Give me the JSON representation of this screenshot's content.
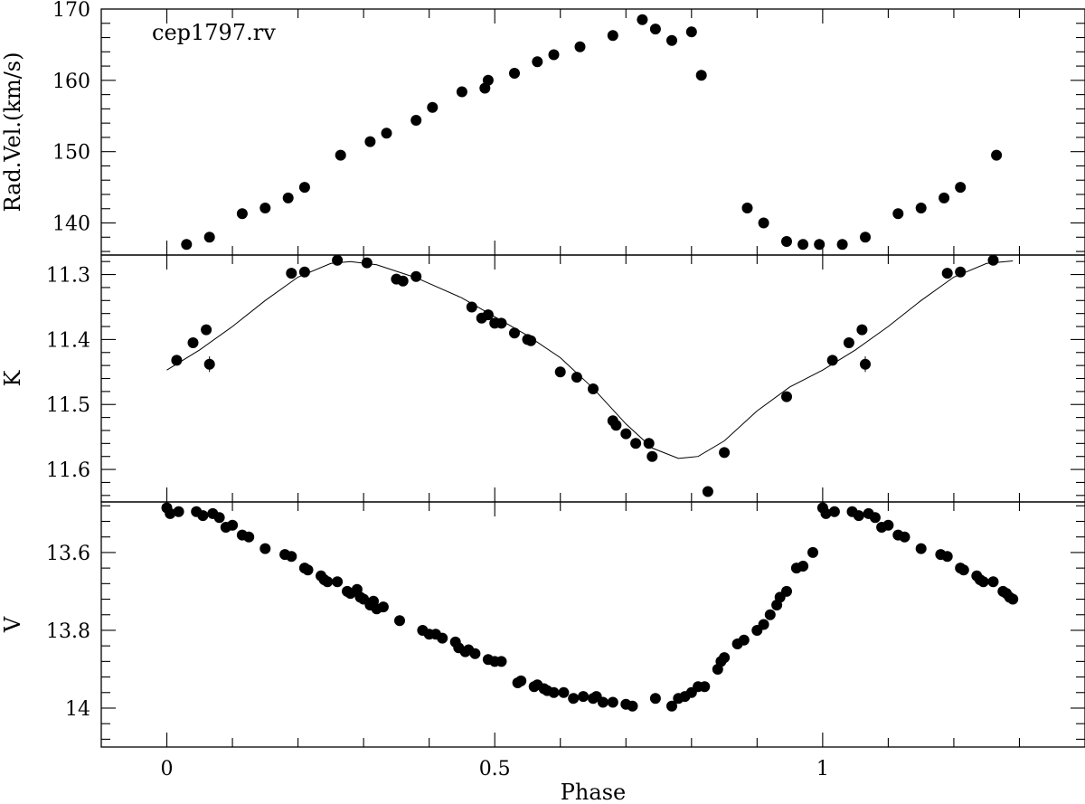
{
  "chart_data": {
    "type": "scatter",
    "xlabel": "Phase",
    "xlim": [
      -0.1,
      1.4
    ],
    "xticks": [
      0,
      0.5,
      1
    ],
    "xtick_labels": [
      "0",
      "0.5",
      "1"
    ],
    "grid": false,
    "panels": [
      {
        "id": "rv",
        "annotation": "cep1797.rv",
        "ylabel": "Rad.Vel.(km/s)",
        "ylim": [
          135.5,
          170
        ],
        "yticks": [
          140,
          150,
          160,
          170
        ],
        "ytick_labels": [
          "140",
          "150",
          "160",
          "170"
        ],
        "inverted": false,
        "points": [
          [
            0.03,
            137.0
          ],
          [
            0.065,
            138.0
          ],
          [
            0.115,
            141.3
          ],
          [
            0.15,
            142.1
          ],
          [
            0.185,
            143.5
          ],
          [
            0.21,
            145.0
          ],
          [
            0.265,
            149.5
          ],
          [
            0.31,
            151.4
          ],
          [
            0.335,
            152.6
          ],
          [
            0.38,
            154.4
          ],
          [
            0.405,
            156.2
          ],
          [
            0.45,
            158.4
          ],
          [
            0.485,
            158.9
          ],
          [
            0.49,
            160.0
          ],
          [
            0.53,
            161.0
          ],
          [
            0.565,
            162.6
          ],
          [
            0.59,
            163.6
          ],
          [
            0.63,
            164.7
          ],
          [
            0.68,
            166.3
          ],
          [
            0.725,
            168.5
          ],
          [
            0.745,
            167.2
          ],
          [
            0.77,
            165.6
          ],
          [
            0.8,
            166.8
          ],
          [
            0.815,
            160.7
          ],
          [
            0.885,
            142.1
          ],
          [
            0.91,
            140.0
          ],
          [
            0.945,
            137.4
          ],
          [
            0.97,
            137.0
          ],
          [
            0.995,
            137.0
          ],
          [
            1.03,
            137.0
          ],
          [
            1.065,
            138.0
          ],
          [
            1.115,
            141.3
          ],
          [
            1.15,
            142.1
          ],
          [
            1.185,
            143.5
          ],
          [
            1.21,
            145.0
          ],
          [
            1.265,
            149.5
          ]
        ]
      },
      {
        "id": "k",
        "ylabel": "K",
        "ylim": [
          11.65,
          11.27
        ],
        "yticks": [
          11.3,
          11.4,
          11.5,
          11.6
        ],
        "ytick_labels": [
          "11.3",
          "11.4",
          "11.5",
          "11.6"
        ],
        "inverted": true,
        "points": [
          [
            0.015,
            11.432
          ],
          [
            0.04,
            11.405
          ],
          [
            0.06,
            11.385
          ],
          [
            0.065,
            11.438
          ],
          [
            0.19,
            11.298
          ],
          [
            0.21,
            11.296
          ],
          [
            0.26,
            11.278
          ],
          [
            0.305,
            11.282
          ],
          [
            0.35,
            11.307
          ],
          [
            0.36,
            11.31
          ],
          [
            0.38,
            11.303
          ],
          [
            0.465,
            11.35
          ],
          [
            0.48,
            11.367
          ],
          [
            0.49,
            11.362
          ],
          [
            0.5,
            11.375
          ],
          [
            0.51,
            11.375
          ],
          [
            0.53,
            11.39
          ],
          [
            0.55,
            11.4
          ],
          [
            0.555,
            11.402
          ],
          [
            0.6,
            11.45
          ],
          [
            0.625,
            11.458
          ],
          [
            0.65,
            11.476
          ],
          [
            0.68,
            11.525
          ],
          [
            0.685,
            11.532
          ],
          [
            0.7,
            11.545
          ],
          [
            0.715,
            11.56
          ],
          [
            0.735,
            11.56
          ],
          [
            0.74,
            11.58
          ],
          [
            0.825,
            11.634
          ],
          [
            0.85,
            11.574
          ],
          [
            0.945,
            11.488
          ],
          [
            1.015,
            11.432
          ],
          [
            1.04,
            11.405
          ],
          [
            1.06,
            11.385
          ],
          [
            1.065,
            11.438
          ],
          [
            1.19,
            11.298
          ],
          [
            1.21,
            11.296
          ],
          [
            1.26,
            11.278
          ]
        ],
        "error_bars": [
          {
            "x": 0.065,
            "y": 11.438,
            "err": 0.012
          },
          {
            "x": 1.065,
            "y": 11.438,
            "err": 0.012
          }
        ],
        "model_curve": [
          [
            0.0,
            11.447
          ],
          [
            0.05,
            11.416
          ],
          [
            0.1,
            11.38
          ],
          [
            0.15,
            11.34
          ],
          [
            0.2,
            11.304
          ],
          [
            0.25,
            11.283
          ],
          [
            0.28,
            11.28
          ],
          [
            0.32,
            11.285
          ],
          [
            0.38,
            11.305
          ],
          [
            0.45,
            11.336
          ],
          [
            0.55,
            11.394
          ],
          [
            0.6,
            11.428
          ],
          [
            0.65,
            11.475
          ],
          [
            0.7,
            11.53
          ],
          [
            0.74,
            11.567
          ],
          [
            0.78,
            11.583
          ],
          [
            0.81,
            11.58
          ],
          [
            0.85,
            11.556
          ],
          [
            0.9,
            11.51
          ],
          [
            0.95,
            11.473
          ],
          [
            1.0,
            11.447
          ],
          [
            1.05,
            11.416
          ],
          [
            1.1,
            11.38
          ],
          [
            1.15,
            11.34
          ],
          [
            1.2,
            11.304
          ],
          [
            1.25,
            11.283
          ],
          [
            1.29,
            11.279
          ]
        ]
      },
      {
        "id": "v",
        "ylabel": "V",
        "ylim": [
          14.1,
          13.47
        ],
        "yticks": [
          13.6,
          13.8,
          14.0
        ],
        "ytick_labels": [
          "13.6",
          "13.8",
          "14"
        ],
        "inverted": true,
        "points": [
          [
            0.0,
            13.485
          ],
          [
            0.005,
            13.5
          ],
          [
            0.018,
            13.495
          ],
          [
            0.045,
            13.495
          ],
          [
            0.055,
            13.505
          ],
          [
            0.07,
            13.5
          ],
          [
            0.08,
            13.51
          ],
          [
            0.09,
            13.535
          ],
          [
            0.1,
            13.53
          ],
          [
            0.115,
            13.555
          ],
          [
            0.125,
            13.56
          ],
          [
            0.15,
            13.59
          ],
          [
            0.18,
            13.605
          ],
          [
            0.19,
            13.61
          ],
          [
            0.21,
            13.64
          ],
          [
            0.215,
            13.645
          ],
          [
            0.235,
            13.66
          ],
          [
            0.24,
            13.67
          ],
          [
            0.245,
            13.675
          ],
          [
            0.26,
            13.675
          ],
          [
            0.275,
            13.7
          ],
          [
            0.28,
            13.705
          ],
          [
            0.29,
            13.695
          ],
          [
            0.295,
            13.715
          ],
          [
            0.3,
            13.72
          ],
          [
            0.31,
            13.735
          ],
          [
            0.315,
            13.725
          ],
          [
            0.32,
            13.745
          ],
          [
            0.33,
            13.74
          ],
          [
            0.355,
            13.775
          ],
          [
            0.39,
            13.8
          ],
          [
            0.4,
            13.81
          ],
          [
            0.41,
            13.81
          ],
          [
            0.42,
            13.82
          ],
          [
            0.44,
            13.83
          ],
          [
            0.445,
            13.845
          ],
          [
            0.455,
            13.855
          ],
          [
            0.46,
            13.85
          ],
          [
            0.47,
            13.86
          ],
          [
            0.49,
            13.875
          ],
          [
            0.5,
            13.88
          ],
          [
            0.51,
            13.88
          ],
          [
            0.535,
            13.935
          ],
          [
            0.54,
            13.93
          ],
          [
            0.56,
            13.945
          ],
          [
            0.565,
            13.94
          ],
          [
            0.575,
            13.95
          ],
          [
            0.58,
            13.955
          ],
          [
            0.59,
            13.96
          ],
          [
            0.605,
            13.96
          ],
          [
            0.62,
            13.975
          ],
          [
            0.635,
            13.97
          ],
          [
            0.65,
            13.975
          ],
          [
            0.655,
            13.97
          ],
          [
            0.665,
            13.985
          ],
          [
            0.68,
            13.985
          ],
          [
            0.7,
            13.99
          ],
          [
            0.71,
            13.995
          ],
          [
            0.745,
            13.975
          ],
          [
            0.77,
            13.995
          ],
          [
            0.78,
            13.975
          ],
          [
            0.79,
            13.97
          ],
          [
            0.8,
            13.96
          ],
          [
            0.81,
            13.945
          ],
          [
            0.82,
            13.945
          ],
          [
            0.84,
            13.9
          ],
          [
            0.845,
            13.88
          ],
          [
            0.85,
            13.87
          ],
          [
            0.87,
            13.835
          ],
          [
            0.88,
            13.825
          ],
          [
            0.9,
            13.8
          ],
          [
            0.91,
            13.785
          ],
          [
            0.92,
            13.76
          ],
          [
            0.93,
            13.735
          ],
          [
            0.935,
            13.715
          ],
          [
            0.945,
            13.7
          ],
          [
            0.96,
            13.64
          ],
          [
            0.97,
            13.635
          ],
          [
            0.985,
            13.6
          ],
          [
            1.0,
            13.485
          ],
          [
            1.005,
            13.5
          ],
          [
            1.018,
            13.495
          ],
          [
            1.045,
            13.495
          ],
          [
            1.055,
            13.505
          ],
          [
            1.07,
            13.5
          ],
          [
            1.08,
            13.51
          ],
          [
            1.09,
            13.535
          ],
          [
            1.1,
            13.53
          ],
          [
            1.115,
            13.555
          ],
          [
            1.125,
            13.56
          ],
          [
            1.15,
            13.59
          ],
          [
            1.18,
            13.605
          ],
          [
            1.19,
            13.61
          ],
          [
            1.21,
            13.64
          ],
          [
            1.215,
            13.645
          ],
          [
            1.235,
            13.66
          ],
          [
            1.24,
            13.67
          ],
          [
            1.245,
            13.675
          ],
          [
            1.26,
            13.675
          ],
          [
            1.275,
            13.7
          ],
          [
            1.28,
            13.705
          ],
          [
            1.285,
            13.715
          ],
          [
            1.29,
            13.72
          ]
        ]
      }
    ]
  }
}
